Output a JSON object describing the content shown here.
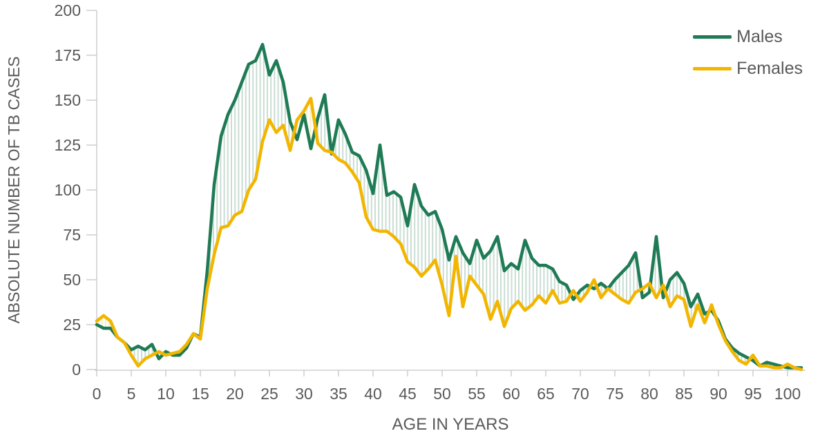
{
  "chart_data": {
    "type": "line",
    "title": "",
    "xlabel": "AGE IN YEARS",
    "ylabel": "ABSOLUTE NUMBER OF TB CASES",
    "x_ticks": [
      0,
      5,
      10,
      15,
      20,
      25,
      30,
      35,
      40,
      45,
      50,
      55,
      60,
      65,
      70,
      75,
      80,
      85,
      90,
      95,
      100
    ],
    "y_ticks": [
      0,
      25,
      50,
      75,
      100,
      125,
      150,
      175,
      200
    ],
    "xlim": [
      0,
      102
    ],
    "ylim": [
      0,
      200
    ],
    "grid": false,
    "legend_position": "top-right",
    "x_unit": "age in single years, 0 to 102",
    "x": [
      0,
      1,
      2,
      3,
      4,
      5,
      6,
      7,
      8,
      9,
      10,
      11,
      12,
      13,
      14,
      15,
      16,
      17,
      18,
      19,
      20,
      21,
      22,
      23,
      24,
      25,
      26,
      27,
      28,
      29,
      30,
      31,
      32,
      33,
      34,
      35,
      36,
      37,
      38,
      39,
      40,
      41,
      42,
      43,
      44,
      45,
      46,
      47,
      48,
      49,
      50,
      51,
      52,
      53,
      54,
      55,
      56,
      57,
      58,
      59,
      60,
      61,
      62,
      63,
      64,
      65,
      66,
      67,
      68,
      69,
      70,
      71,
      72,
      73,
      74,
      75,
      76,
      77,
      78,
      79,
      80,
      81,
      82,
      83,
      84,
      85,
      86,
      87,
      88,
      89,
      90,
      91,
      92,
      93,
      94,
      95,
      96,
      97,
      98,
      99,
      100,
      101,
      102
    ],
    "series": [
      {
        "name": "Males",
        "color": "#1f7b55",
        "hatch_color": "#c9ddd3",
        "values": [
          25,
          23,
          23,
          18,
          15,
          11,
          13,
          11,
          14,
          6,
          10,
          8,
          8,
          12,
          20,
          18,
          55,
          103,
          130,
          142,
          150,
          160,
          170,
          172,
          181,
          164,
          172,
          160,
          138,
          128,
          142,
          123,
          140,
          153,
          120,
          139,
          131,
          121,
          119,
          111,
          98,
          125,
          97,
          99,
          96,
          80,
          103,
          91,
          86,
          88,
          78,
          61,
          74,
          65,
          59,
          72,
          62,
          66,
          74,
          55,
          59,
          56,
          72,
          62,
          58,
          58,
          56,
          49,
          47,
          39,
          44,
          47,
          45,
          48,
          45,
          50,
          54,
          58,
          65,
          40,
          43,
          74,
          40,
          50,
          54,
          48,
          35,
          42,
          31,
          33,
          27,
          17,
          12,
          9,
          7,
          5,
          2,
          4,
          3,
          2,
          1,
          1,
          1
        ]
      },
      {
        "name": "Females",
        "color": "#f2b600",
        "hatch_color": "#fbeec5",
        "values": [
          27,
          30,
          27,
          18,
          15,
          8,
          2,
          6,
          8,
          10,
          8,
          9,
          10,
          14,
          20,
          17,
          45,
          64,
          79,
          80,
          86,
          88,
          100,
          106,
          127,
          139,
          132,
          136,
          122,
          139,
          144,
          151,
          126,
          122,
          121,
          117,
          115,
          110,
          104,
          85,
          78,
          77,
          77,
          74,
          70,
          60,
          57,
          52,
          56,
          61,
          47,
          30,
          63,
          35,
          52,
          47,
          42,
          28,
          38,
          24,
          34,
          38,
          33,
          36,
          41,
          37,
          44,
          37,
          38,
          44,
          38,
          43,
          50,
          40,
          45,
          42,
          39,
          37,
          43,
          45,
          48,
          40,
          47,
          35,
          41,
          39,
          24,
          36,
          26,
          36,
          25,
          16,
          10,
          5,
          3,
          8,
          2,
          2,
          1,
          1,
          3,
          1,
          0
        ]
      }
    ],
    "annotations": [],
    "notes": "Vertical hatch fill between curves: green stripes where Males exceed Females, pale yellow stripes where Females exceed Males."
  },
  "style": {
    "axis_color": "#c7c7c7",
    "text_color": "#595959",
    "background": "#ffffff"
  },
  "legend": {
    "items": [
      {
        "label": "Males"
      },
      {
        "label": "Females"
      }
    ]
  }
}
